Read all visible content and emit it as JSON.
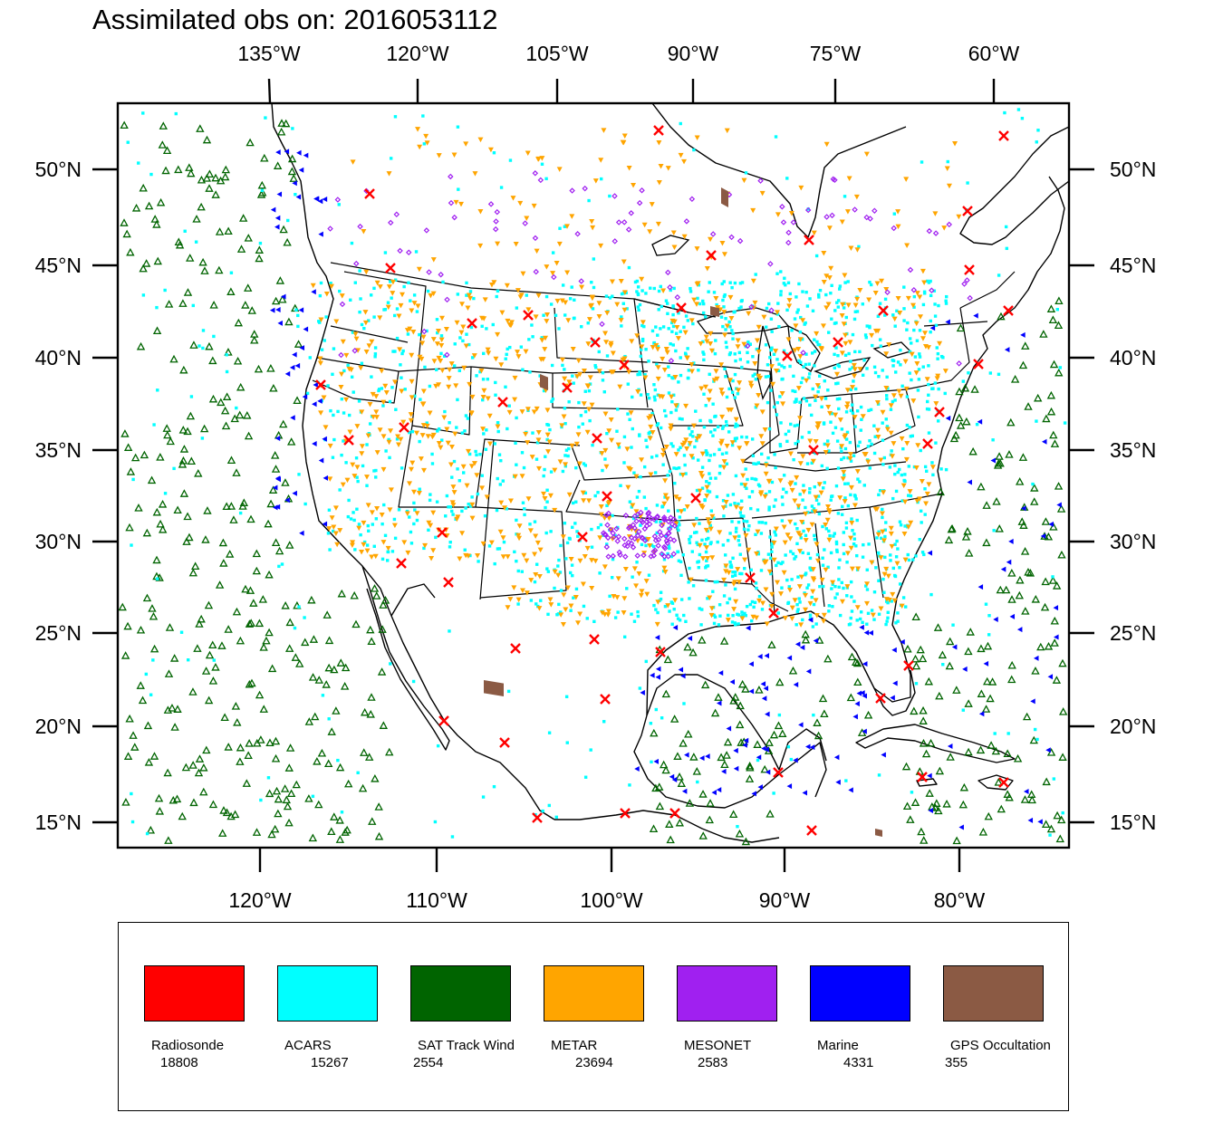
{
  "title": "Assimilated obs on: 2016053112",
  "map": {
    "top_lon_labels": [
      "135°W",
      "120°W",
      "105°W",
      "90°W",
      "75°W",
      "60°W"
    ],
    "bottom_lon_labels": [
      "120°W",
      "110°W",
      "100°W",
      "90°W",
      "80°W"
    ],
    "lat_labels": [
      "50°N",
      "45°N",
      "40°N",
      "35°N",
      "30°N",
      "25°N",
      "20°N",
      "15°N"
    ]
  },
  "legend": [
    {
      "name": "Radiosonde",
      "count": "18808",
      "color": "#ff0000",
      "marker": "x-cross"
    },
    {
      "name": "ACARS",
      "count": "15267",
      "color": "#00ffff",
      "marker": "dot"
    },
    {
      "name": "SAT Track Wind",
      "count": "2554",
      "color": "#006400",
      "marker": "open-triangle"
    },
    {
      "name": "METAR",
      "count": "23694",
      "color": "#ffa500",
      "marker": "down-triangle"
    },
    {
      "name": "MESONET",
      "count": "2583",
      "color": "#a020f0",
      "marker": "small-diamond"
    },
    {
      "name": "Marine",
      "count": "4331",
      "color": "#0000ff",
      "marker": "left-triangle"
    },
    {
      "name": "GPS Occultation",
      "count": "355",
      "color": "#8b5a44",
      "marker": "bar-segment"
    }
  ]
}
